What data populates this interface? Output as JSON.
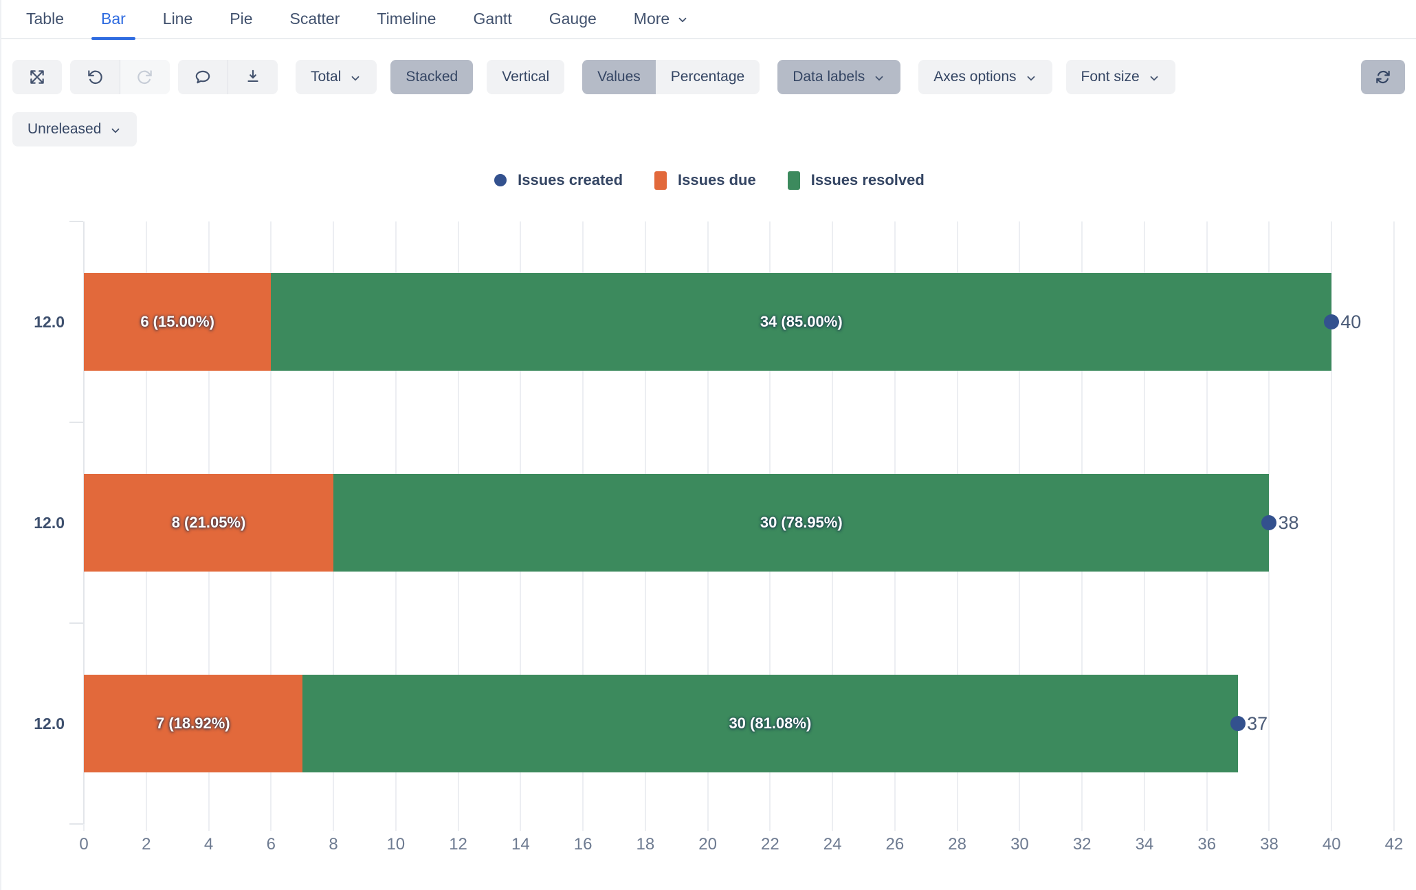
{
  "tabs": {
    "items": [
      {
        "label": "Table",
        "active": false,
        "dropdown": false
      },
      {
        "label": "Bar",
        "active": true,
        "dropdown": false
      },
      {
        "label": "Line",
        "active": false,
        "dropdown": false
      },
      {
        "label": "Pie",
        "active": false,
        "dropdown": false
      },
      {
        "label": "Scatter",
        "active": false,
        "dropdown": false
      },
      {
        "label": "Timeline",
        "active": false,
        "dropdown": false
      },
      {
        "label": "Gantt",
        "active": false,
        "dropdown": false
      },
      {
        "label": "Gauge",
        "active": false,
        "dropdown": false
      },
      {
        "label": "More",
        "active": false,
        "dropdown": true
      }
    ]
  },
  "toolbar": {
    "total_label": "Total",
    "stacked_label": "Stacked",
    "vertical_label": "Vertical",
    "values_label": "Values",
    "percentage_label": "Percentage",
    "data_labels_label": "Data labels",
    "axes_options_label": "Axes options",
    "font_size_label": "Font size",
    "icons": [
      "expand-icon",
      "undo-icon",
      "redo-icon",
      "comment-icon",
      "download-icon",
      "refresh-icon"
    ]
  },
  "filter": {
    "version_label": "Unreleased"
  },
  "colors": {
    "accent_blue": "#2e6be0",
    "issues_created": "#33518e",
    "issues_due": "#e2693b",
    "issues_resolved": "#3c8a5d",
    "button_selected": "#b5bbc7",
    "button_default": "#f1f2f4"
  },
  "chart_data": {
    "type": "bar",
    "orientation": "horizontal",
    "stacked": true,
    "title": "",
    "xlabel": "",
    "ylabel": "",
    "legend_position": "top",
    "grid": "vertical",
    "xlim": [
      0,
      42
    ],
    "x_tick_step": 2,
    "x_ticks": [
      0,
      2,
      4,
      6,
      8,
      10,
      12,
      14,
      16,
      18,
      20,
      22,
      24,
      26,
      28,
      30,
      32,
      34,
      36,
      38,
      40,
      42
    ],
    "categories": [
      "12.0",
      "12.0",
      "12.0"
    ],
    "series": [
      {
        "name": "Issues created",
        "marker": "circle",
        "color": "#33518e",
        "values": [
          40,
          38,
          37
        ]
      },
      {
        "name": "Issues due",
        "marker": "square",
        "color": "#e2693b",
        "values": [
          6,
          8,
          7
        ],
        "data_labels": [
          "6 (15.00%)",
          "8 (21.05%)",
          "7 (18.92%)"
        ]
      },
      {
        "name": "Issues resolved",
        "marker": "square",
        "color": "#3c8a5d",
        "values": [
          34,
          30,
          30
        ],
        "data_labels": [
          "34 (85.00%)",
          "30 (78.95%)",
          "30 (81.08%)"
        ]
      }
    ],
    "totals": [
      40,
      38,
      37
    ],
    "total_labels": [
      "40",
      "38",
      "37"
    ]
  }
}
